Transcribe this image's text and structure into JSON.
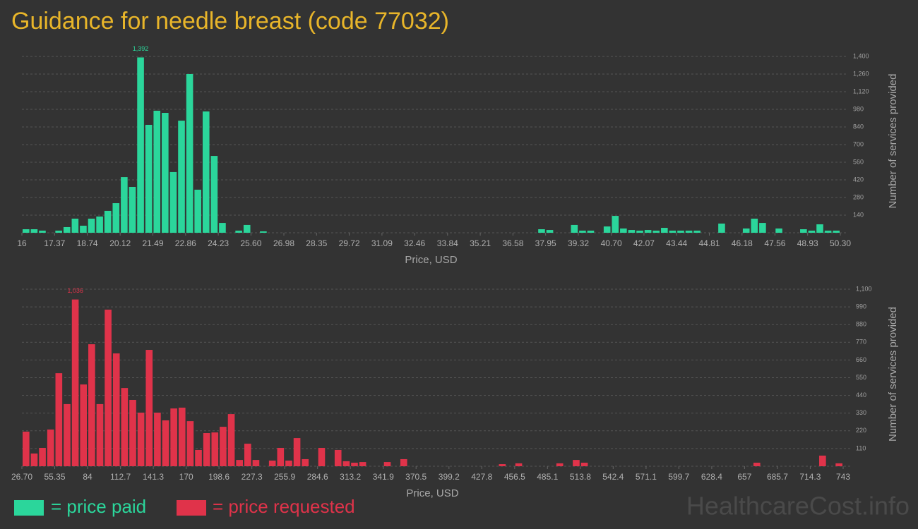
{
  "title": "Guidance for needle breast (code 77032)",
  "watermark": "HealthcareCost.info",
  "chart_data": [
    {
      "type": "histogram",
      "x_label": "Price, USD",
      "y_label": "Number of services provided",
      "bins": [
        16,
        16.343,
        16.686,
        17.029,
        17.372,
        17.715,
        18.058,
        18.401,
        18.744,
        19.087,
        19.43,
        19.773,
        20.116,
        20.459,
        20.802,
        21.145,
        21.488,
        21.831,
        22.174,
        22.517,
        22.86,
        23.203,
        23.546,
        23.889,
        24.232,
        24.575,
        24.918,
        25.261,
        25.604,
        25.947,
        26.29,
        26.633,
        26.976,
        27.319,
        27.662,
        28.005,
        28.348,
        28.691,
        29.034,
        29.377,
        29.72,
        30.063,
        30.406,
        30.749,
        31.092,
        31.435,
        31.778,
        32.121,
        32.464,
        32.807,
        33.15,
        33.493,
        33.836,
        34.179,
        34.522,
        34.865,
        35.208,
        35.551,
        35.894,
        36.237,
        36.58,
        36.923,
        37.266,
        37.609,
        37.952,
        38.295,
        38.638,
        38.981,
        39.324,
        39.667,
        40.01,
        40.353,
        40.696,
        41.039,
        41.382,
        41.725,
        42.068,
        42.411,
        42.754,
        43.097,
        43.44,
        43.783,
        44.126,
        44.469,
        44.812,
        45.155,
        45.498,
        45.841,
        46.184,
        46.527,
        46.87,
        47.213,
        47.556,
        47.899,
        48.242,
        48.585,
        48.928,
        49.271,
        49.614,
        49.957,
        50.3
      ],
      "series": [
        {
          "name": "= price paid",
          "color": "#2bd69b",
          "values": [
            28,
            28,
            17,
            0,
            17,
            45,
            112,
            56,
            112,
            129,
            174,
            235,
            442,
            364,
            1392,
            857,
            969,
            952,
            482,
            890,
            1260,
            342,
            963,
            610,
            78,
            0,
            17,
            62,
            0,
            11,
            0,
            0,
            0,
            0,
            0,
            0,
            0,
            0,
            0,
            0,
            0,
            0,
            0,
            0,
            0,
            0,
            0,
            0,
            0,
            0,
            0,
            0,
            0,
            0,
            0,
            0,
            0,
            0,
            0,
            0,
            0,
            0,
            0,
            28,
            22,
            0,
            0,
            62,
            17,
            17,
            0,
            50,
            134,
            34,
            22,
            17,
            22,
            17,
            39,
            17,
            17,
            17,
            17,
            0,
            0,
            73,
            0,
            0,
            34,
            112,
            78,
            0,
            34,
            0,
            0,
            28,
            17,
            67,
            17,
            17
          ],
          "value_labels": [
            null,
            null,
            null,
            null,
            null,
            null,
            null,
            null,
            null,
            null,
            null,
            null,
            null,
            null,
            "1,392",
            null,
            null,
            null,
            null,
            null,
            null,
            null,
            null,
            null,
            null,
            null,
            null,
            null,
            null,
            null,
            null,
            null,
            null,
            null,
            null,
            null,
            null,
            null,
            null,
            null,
            null,
            null,
            null,
            null,
            null,
            null,
            null,
            null,
            null,
            null,
            null,
            null,
            null,
            null,
            null,
            null,
            null,
            null,
            null,
            null,
            null,
            null,
            null,
            null,
            null,
            null,
            null,
            null,
            null,
            null,
            null,
            null,
            null,
            null,
            null,
            null,
            null,
            null,
            null,
            null,
            null,
            null,
            null,
            null,
            null,
            null,
            null,
            null,
            null,
            null,
            null,
            null,
            null,
            null,
            null,
            null,
            null,
            null,
            null,
            null
          ]
        }
      ],
      "xlim": [
        16,
        50.3
      ],
      "xticks": [
        16,
        17.37,
        18.74,
        20.12,
        21.49,
        22.86,
        24.23,
        {
          "value": 25.6,
          "label": "25.60"
        },
        26.98,
        28.35,
        29.72,
        31.09,
        32.46,
        33.84,
        35.21,
        36.58,
        37.95,
        39.32,
        {
          "value": 40.7,
          "label": "40.70"
        },
        42.07,
        43.44,
        44.81,
        46.18,
        47.56,
        48.93,
        {
          "value": 50.3,
          "label": "50.30"
        }
      ],
      "ylim": [
        0,
        1400
      ],
      "yticks": [
        140,
        280,
        420,
        560,
        700,
        840,
        980,
        {
          "value": 1120,
          "label": "1,120"
        },
        {
          "value": 1260,
          "label": "1,260"
        },
        {
          "value": 1400,
          "label": "1,400"
        }
      ],
      "grid": true
    },
    {
      "type": "histogram",
      "x_label": "Price, USD",
      "y_label": "Number of services provided",
      "bins": [
        26.7,
        33.8625,
        41.025,
        48.1875,
        55.35,
        62.5125,
        69.675,
        76.8375,
        84,
        91.1625,
        98.325,
        105.4875,
        112.65,
        119.8125,
        126.975,
        134.1375,
        141.3,
        148.4625,
        155.625,
        162.7875,
        169.95,
        177.1125,
        184.275,
        191.4375,
        198.6,
        205.7625,
        212.925,
        220.0875,
        227.25,
        234.4125,
        241.575,
        248.7375,
        255.9,
        263.0625,
        270.225,
        277.3875,
        284.55,
        291.7125,
        298.875,
        306.0375,
        313.2,
        320.3625,
        327.525,
        334.6875,
        341.85,
        349.0125,
        356.175,
        363.3375,
        370.5,
        377.6625,
        384.825,
        391.9875,
        399.15,
        406.3125,
        413.475,
        420.6375,
        427.8,
        434.9625,
        442.125,
        449.2875,
        456.45,
        463.6125,
        470.775,
        477.9375,
        485.1,
        492.2625,
        499.425,
        506.5875,
        513.75,
        520.9125,
        528.075,
        535.2375,
        542.4,
        549.5625,
        556.725,
        563.8875,
        571.05,
        578.2125,
        585.375,
        592.5375,
        599.7,
        606.8625,
        614.025,
        621.1875,
        628.35,
        635.5125,
        642.675,
        649.8375,
        657,
        664.1625,
        671.325,
        678.4875,
        685.65,
        692.8125,
        699.975,
        707.1375,
        714.3,
        721.4625,
        728.625,
        735.7875,
        743
      ],
      "series": [
        {
          "name": "= price requested",
          "color": "#e0334a",
          "values": [
            215,
            79,
            114,
            228,
            578,
            386,
            1036,
            508,
            758,
            386,
            973,
            701,
            486,
            412,
            333,
            723,
            333,
            285,
            359,
            364,
            280,
            101,
            206,
            210,
            245,
            324,
            39,
            140,
            39,
            0,
            35,
            114,
            35,
            175,
            44,
            0,
            114,
            0,
            101,
            31,
            22,
            26,
            0,
            0,
            26,
            0,
            44,
            0,
            0,
            0,
            0,
            0,
            0,
            0,
            0,
            0,
            0,
            0,
            13,
            0,
            18,
            0,
            0,
            0,
            0,
            18,
            0,
            39,
            22,
            0,
            0,
            0,
            0,
            0,
            0,
            0,
            0,
            0,
            0,
            0,
            0,
            0,
            0,
            0,
            0,
            0,
            0,
            0,
            0,
            22,
            0,
            0,
            0,
            0,
            0,
            0,
            0,
            66,
            0,
            18
          ],
          "value_labels": [
            null,
            null,
            null,
            null,
            null,
            null,
            "1,036",
            null,
            null,
            null,
            null,
            null,
            null,
            null,
            null,
            null,
            null,
            null,
            null,
            null,
            null,
            null,
            null,
            null,
            null,
            null,
            null,
            null,
            null,
            null,
            null,
            null,
            null,
            null,
            null,
            null,
            null,
            null,
            null,
            null,
            null,
            null,
            null,
            null,
            null,
            null,
            null,
            null,
            null,
            null,
            null,
            null,
            null,
            null,
            null,
            null,
            null,
            null,
            null,
            null,
            null,
            null,
            null,
            null,
            null,
            null,
            null,
            null,
            null,
            null,
            null,
            null,
            null,
            null,
            null,
            null,
            null,
            null,
            null,
            null,
            null,
            null,
            null,
            null,
            null,
            null,
            null,
            null,
            null,
            null,
            null,
            null,
            null,
            null,
            null,
            null,
            null,
            null,
            null,
            null
          ]
        }
      ],
      "xlim": [
        26.7,
        743
      ],
      "xticks": [
        {
          "value": 26.7,
          "label": "26.70"
        },
        55.35,
        84,
        112.7,
        141.3,
        170,
        198.6,
        227.3,
        255.9,
        284.6,
        313.2,
        341.9,
        370.5,
        399.2,
        427.8,
        456.5,
        485.1,
        513.8,
        542.4,
        571.1,
        599.7,
        628.4,
        657,
        685.7,
        714.3,
        743
      ],
      "ylim": [
        0,
        1100
      ],
      "yticks": [
        110,
        220,
        330,
        440,
        550,
        660,
        770,
        880,
        990,
        {
          "value": 1100,
          "label": "1,100"
        }
      ],
      "grid": true
    }
  ]
}
